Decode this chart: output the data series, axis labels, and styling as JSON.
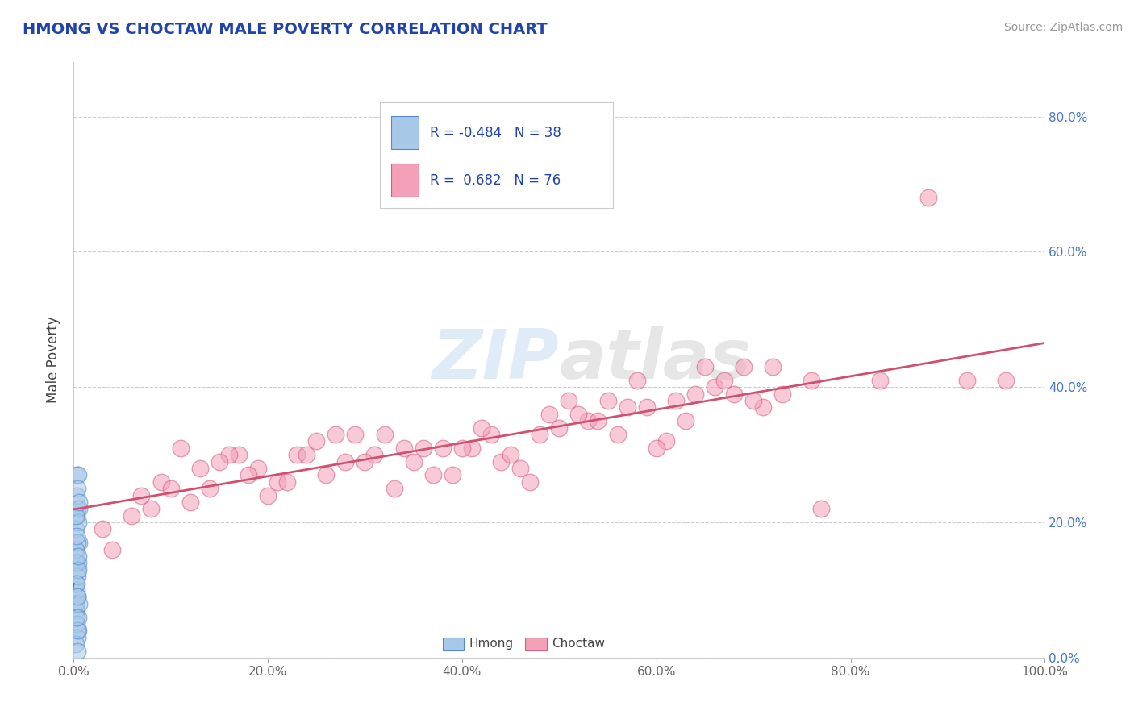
{
  "title": "HMONG VS CHOCTAW MALE POVERTY CORRELATION CHART",
  "source": "Source: ZipAtlas.com",
  "ylabel": "Male Poverty",
  "watermark": "ZIPatlas",
  "xlim": [
    0,
    1.0
  ],
  "ylim": [
    0,
    0.88
  ],
  "xticks": [
    0.0,
    0.2,
    0.4,
    0.6,
    0.8,
    1.0
  ],
  "xticklabels": [
    "0.0%",
    "20.0%",
    "40.0%",
    "60.0%",
    "80.0%",
    "100.0%"
  ],
  "yticks_right": [
    0.0,
    0.2,
    0.4,
    0.6,
    0.8
  ],
  "ytick_labels_right": [
    "0.0%",
    "20.0%",
    "40.0%",
    "60.0%",
    "80.0%"
  ],
  "hmong_R": -0.484,
  "hmong_N": 38,
  "choctaw_R": 0.682,
  "choctaw_N": 76,
  "hmong_color": "#a8c8e8",
  "choctaw_color": "#f4a0b8",
  "hmong_edge": "#5588cc",
  "choctaw_edge": "#d06080",
  "regression_hmong_color": "#4477bb",
  "regression_choctaw_color": "#d05070",
  "title_color": "#2244aa",
  "source_color": "#999999",
  "legend_label1": "Hmong",
  "legend_label2": "Choctaw",
  "grid_color": "#cccccc",
  "background_color": "#ffffff",
  "hmong_x": [
    0.003,
    0.005,
    0.002,
    0.004,
    0.006,
    0.003,
    0.004,
    0.002,
    0.005,
    0.003,
    0.004,
    0.002,
    0.003,
    0.005,
    0.004,
    0.006,
    0.003,
    0.002,
    0.004,
    0.005,
    0.003,
    0.004,
    0.002,
    0.005,
    0.003,
    0.004,
    0.006,
    0.002,
    0.003,
    0.005,
    0.004,
    0.003,
    0.002,
    0.005,
    0.004,
    0.006,
    0.003,
    0.004
  ],
  "hmong_y": [
    0.27,
    0.14,
    0.11,
    0.09,
    0.17,
    0.21,
    0.22,
    0.07,
    0.04,
    0.24,
    0.13,
    0.19,
    0.15,
    0.06,
    0.17,
    0.22,
    0.1,
    0.08,
    0.12,
    0.27,
    0.05,
    0.03,
    0.16,
    0.2,
    0.14,
    0.25,
    0.08,
    0.02,
    0.18,
    0.13,
    0.04,
    0.11,
    0.21,
    0.15,
    0.09,
    0.23,
    0.06,
    0.01
  ],
  "choctaw_x": [
    0.03,
    0.06,
    0.09,
    0.11,
    0.14,
    0.17,
    0.19,
    0.21,
    0.23,
    0.26,
    0.29,
    0.31,
    0.33,
    0.36,
    0.39,
    0.41,
    0.43,
    0.46,
    0.49,
    0.51,
    0.53,
    0.56,
    0.59,
    0.61,
    0.63,
    0.66,
    0.69,
    0.71,
    0.73,
    0.76,
    0.07,
    0.1,
    0.13,
    0.16,
    0.2,
    0.24,
    0.27,
    0.3,
    0.34,
    0.37,
    0.4,
    0.44,
    0.47,
    0.5,
    0.54,
    0.57,
    0.6,
    0.64,
    0.67,
    0.7,
    0.04,
    0.08,
    0.12,
    0.15,
    0.18,
    0.22,
    0.25,
    0.28,
    0.32,
    0.35,
    0.38,
    0.42,
    0.45,
    0.48,
    0.52,
    0.55,
    0.58,
    0.62,
    0.65,
    0.68,
    0.72,
    0.77,
    0.83,
    0.88,
    0.92,
    0.96
  ],
  "choctaw_y": [
    0.19,
    0.21,
    0.26,
    0.31,
    0.25,
    0.3,
    0.28,
    0.26,
    0.3,
    0.27,
    0.33,
    0.3,
    0.25,
    0.31,
    0.27,
    0.31,
    0.33,
    0.28,
    0.36,
    0.38,
    0.35,
    0.33,
    0.37,
    0.32,
    0.35,
    0.4,
    0.43,
    0.37,
    0.39,
    0.41,
    0.24,
    0.25,
    0.28,
    0.3,
    0.24,
    0.3,
    0.33,
    0.29,
    0.31,
    0.27,
    0.31,
    0.29,
    0.26,
    0.34,
    0.35,
    0.37,
    0.31,
    0.39,
    0.41,
    0.38,
    0.16,
    0.22,
    0.23,
    0.29,
    0.27,
    0.26,
    0.32,
    0.29,
    0.33,
    0.29,
    0.31,
    0.34,
    0.3,
    0.33,
    0.36,
    0.38,
    0.41,
    0.38,
    0.43,
    0.39,
    0.43,
    0.22,
    0.41,
    0.68,
    0.41,
    0.41
  ],
  "marker_size": 220,
  "marker_alpha": 0.55,
  "marker_linewidth": 1.0
}
